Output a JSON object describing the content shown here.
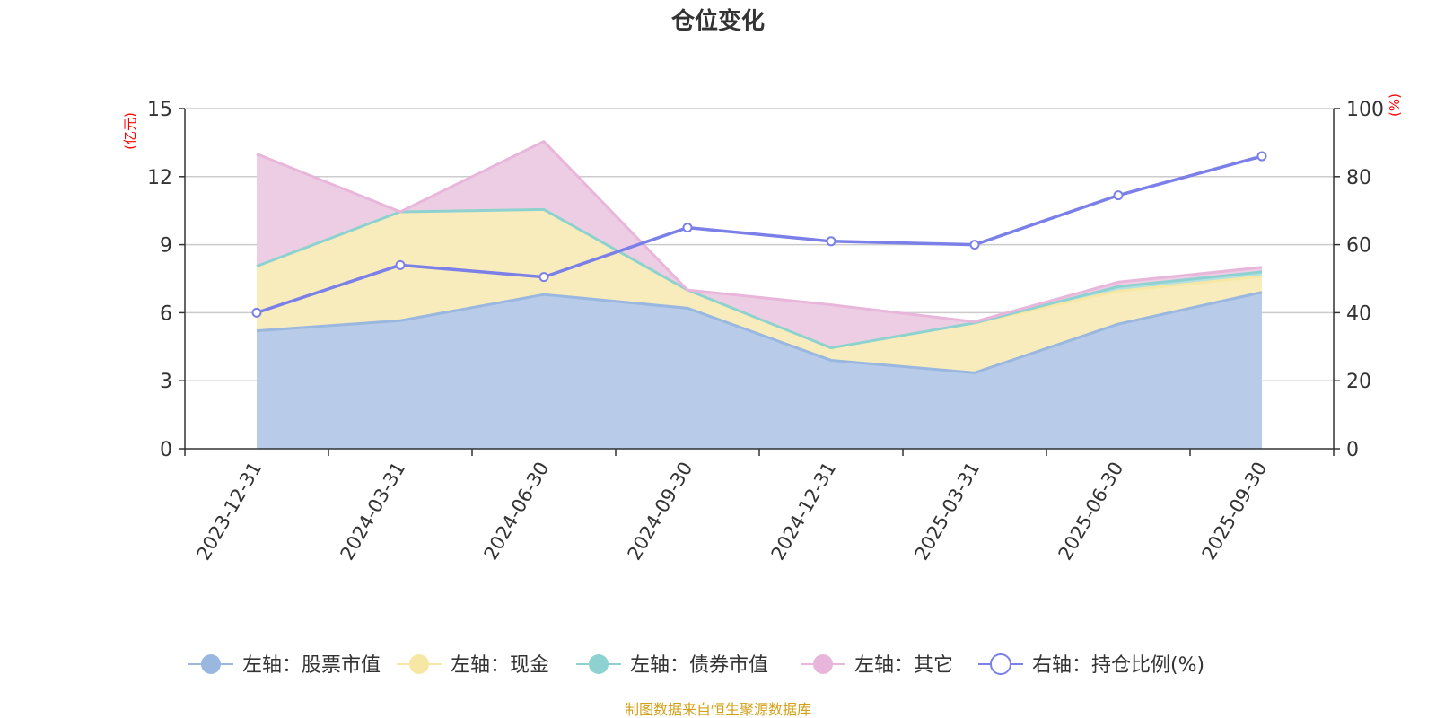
{
  "chart_data": {
    "type": "area",
    "title": "仓位变化",
    "categories": [
      "2023-12-31",
      "2024-03-31",
      "2024-06-30",
      "2024-09-30",
      "2024-12-31",
      "2025-03-31",
      "2025-06-30",
      "2025-09-30"
    ],
    "left_axis": {
      "unit": "(亿元)",
      "ylim": [
        0,
        15
      ],
      "ticks": [
        "0",
        "3",
        "6",
        "9",
        "12",
        "15"
      ]
    },
    "right_axis": {
      "unit": "(%)",
      "ylim": [
        0,
        100
      ],
      "ticks": [
        "0",
        "20",
        "40",
        "60",
        "80",
        "100"
      ]
    },
    "stacked_series": [
      {
        "name": "左轴：股票市值",
        "color": "#9ab7e0",
        "fill": "#b8cbe9",
        "values": [
          5.2,
          5.65,
          6.8,
          6.2,
          3.9,
          3.35,
          5.5,
          6.9
        ]
      },
      {
        "name": "左轴：现金",
        "color": "#f7e7a4",
        "fill": "#f8ecbd",
        "values": [
          2.85,
          4.8,
          3.75,
          0.8,
          0.55,
          2.2,
          1.45,
          0.7
        ]
      },
      {
        "name": "左轴：债券市值",
        "color": "#8ed1d1",
        "fill": "#b3e0e0",
        "values": [
          0,
          0,
          0,
          0,
          0,
          0,
          0.2,
          0.2
        ]
      },
      {
        "name": "左轴：其它",
        "color": "#e8b6da",
        "fill": "#edcde3",
        "values": [
          4.95,
          0,
          3.0,
          0,
          1.9,
          0.05,
          0.2,
          0.2
        ]
      }
    ],
    "line_series": {
      "name": "右轴：持仓比例(%)",
      "color": "#7b7fe8",
      "values": [
        40,
        54,
        50.5,
        65,
        61,
        60,
        74.5,
        86
      ]
    },
    "grid": true,
    "legend_position": "bottom"
  },
  "source_note": "制图数据来自恒生聚源数据库"
}
